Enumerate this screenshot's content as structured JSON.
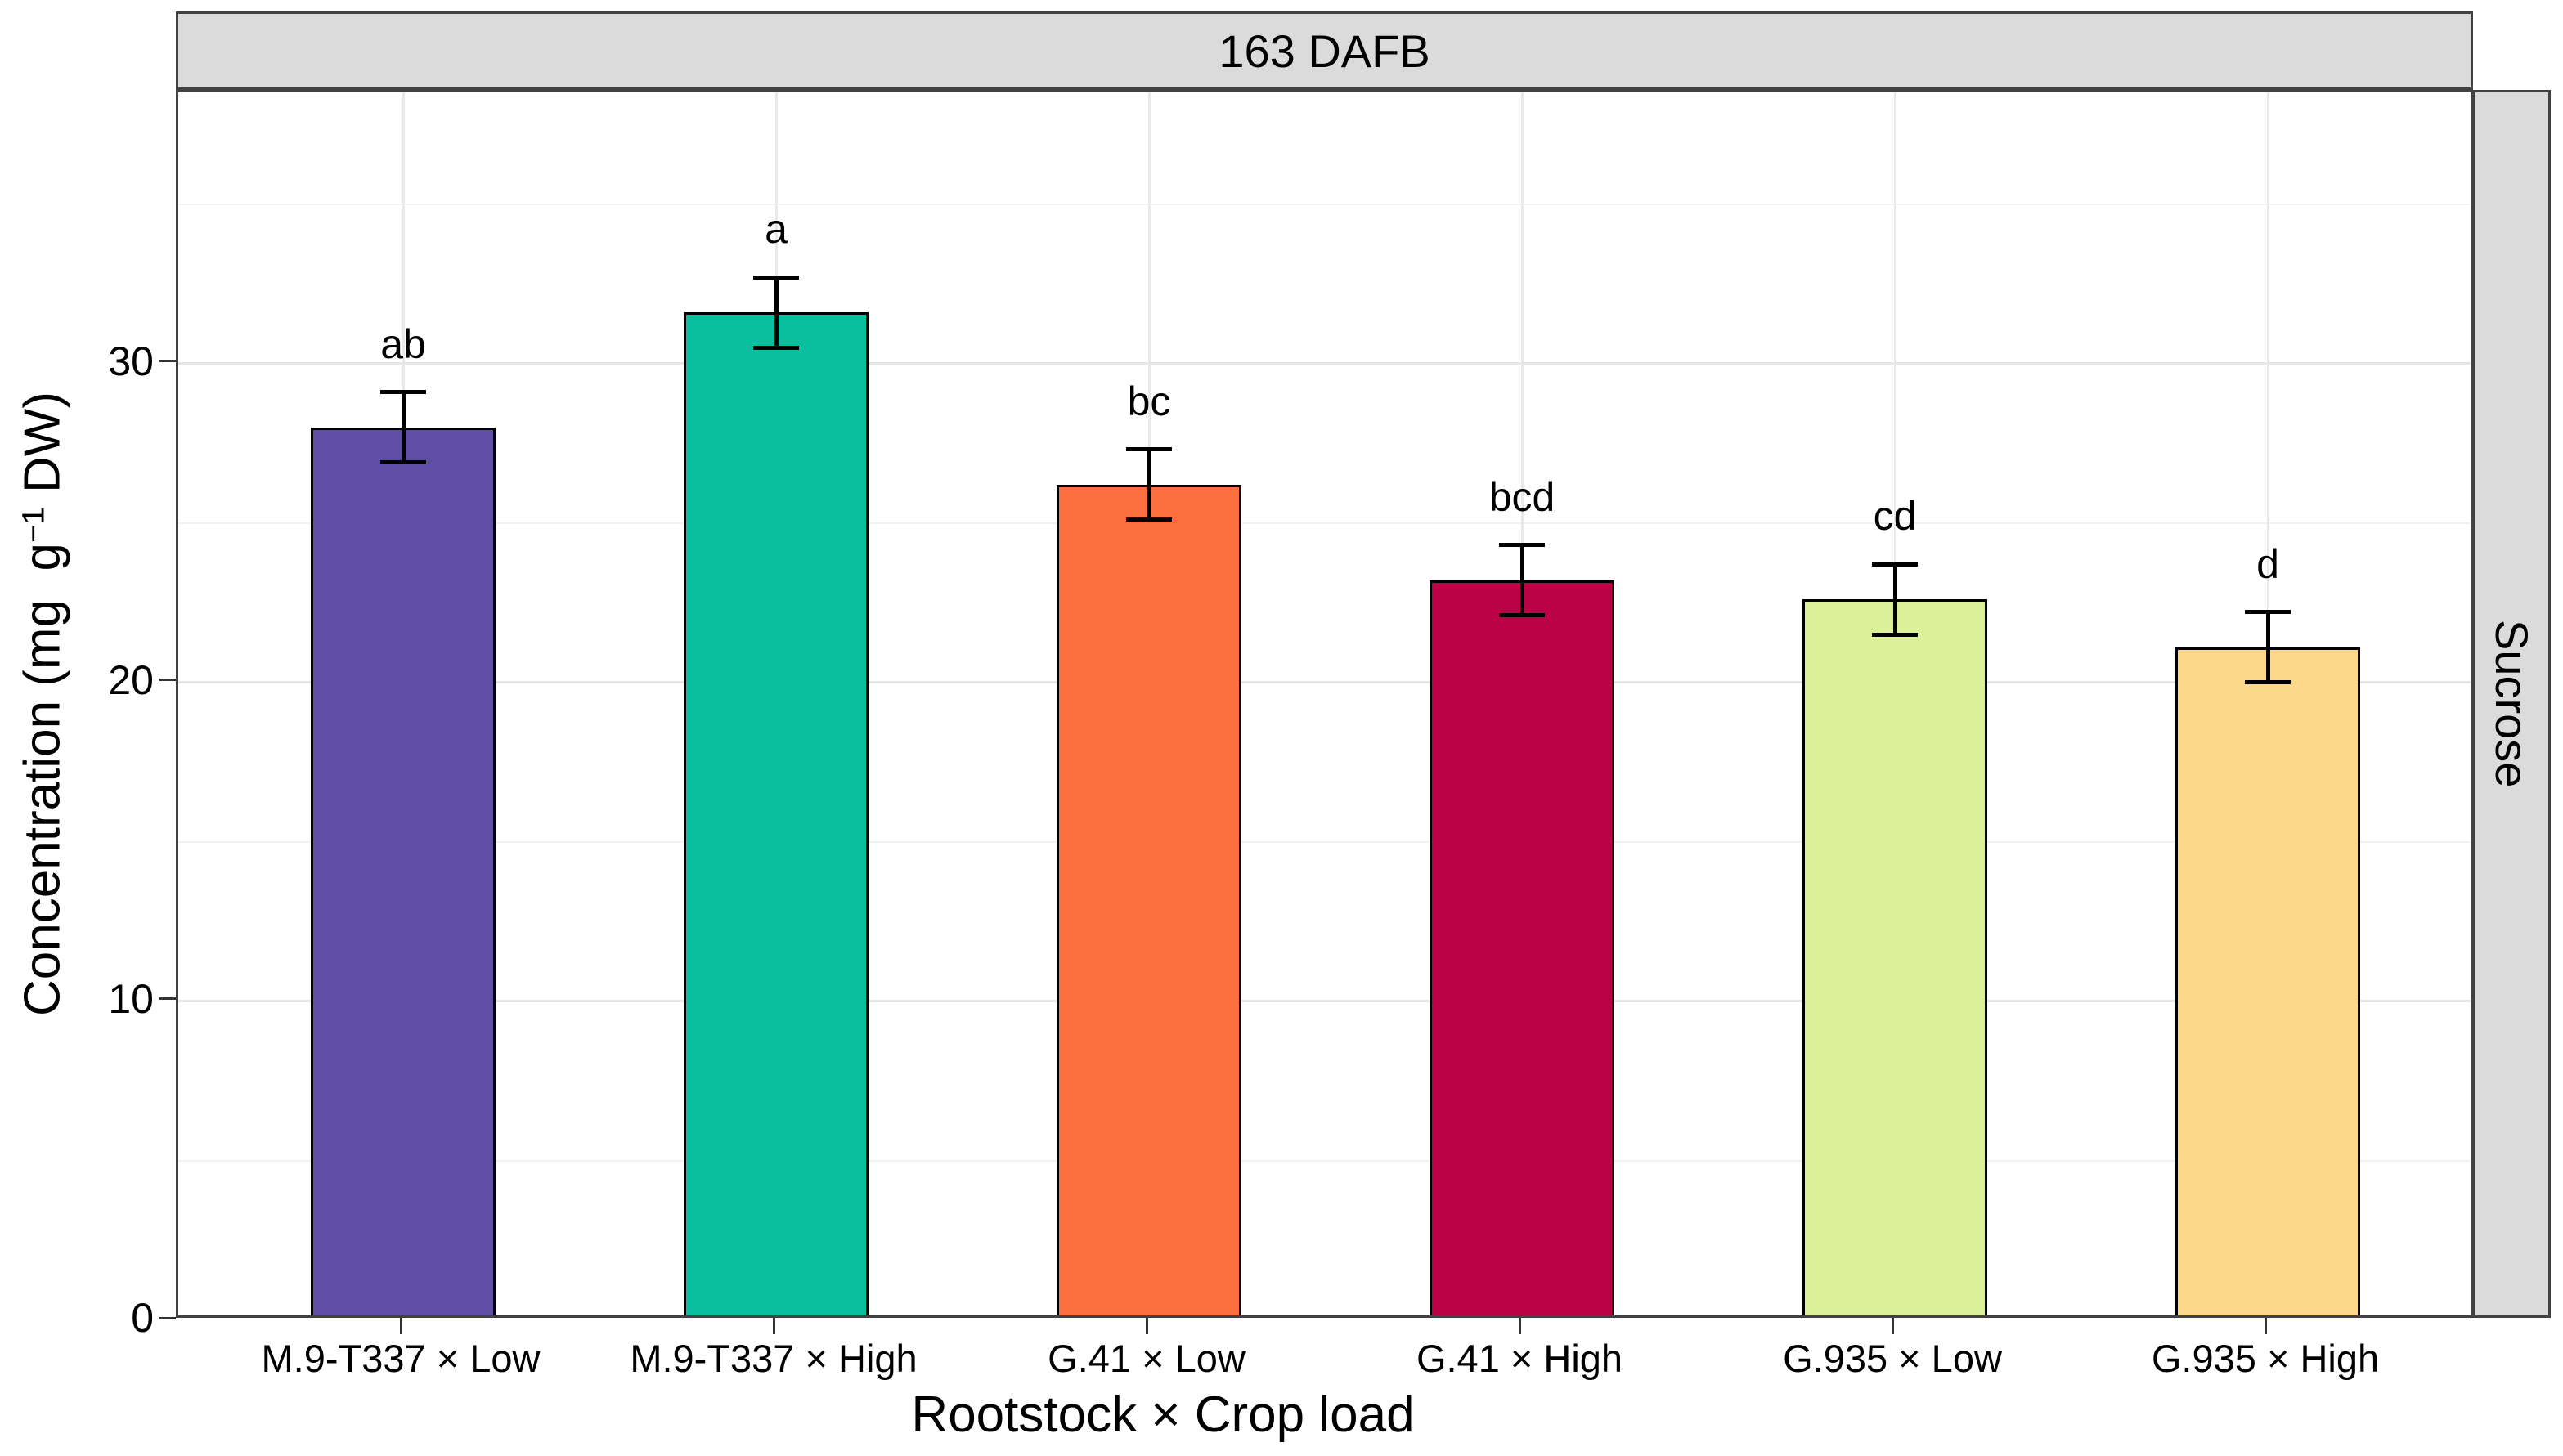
{
  "figure": {
    "facet_strip_top": "163 DAFB",
    "facet_strip_right": "Sucrose"
  },
  "chart_data": {
    "type": "bar",
    "title": "",
    "facet_row_label": "163 DAFB",
    "facet_col_label": "Sucrose",
    "xlabel": "Rootstock × Crop load",
    "ylabel": "Concentration (mg  g⁻¹ DW)",
    "ylabel_parts": {
      "pre": "Concentration (mg  g",
      "sup": "−1",
      "post": " DW)"
    },
    "ylim": [
      0,
      38.5
    ],
    "yticks": [
      0,
      10,
      20,
      30
    ],
    "minor_gridlines": [
      5,
      15,
      25,
      35
    ],
    "grid": true,
    "legend": "none",
    "categories": [
      "M.9-T337 × Low",
      "M.9-T337 × High",
      "G.41 × Low",
      "G.41 × High",
      "G.935 × Low",
      "G.935 × High"
    ],
    "values": [
      28.0,
      31.6,
      26.2,
      23.2,
      22.6,
      21.1
    ],
    "error_low": [
      26.9,
      30.5,
      25.1,
      22.1,
      21.5,
      20.0
    ],
    "error_high": [
      29.1,
      32.7,
      27.3,
      24.3,
      23.7,
      22.2
    ],
    "sig_letters": [
      "ab",
      "a",
      "bc",
      "bcd",
      "cd",
      "d"
    ],
    "bar_colors": [
      "#5F50A5",
      "#0ABF9E",
      "#FB6E3E",
      "#BC0247",
      "#DBF098",
      "#FCD98A"
    ],
    "bar_border_color": "#000000",
    "strip_bg_color": "#DBDBDB",
    "panel_border_color": "#424242"
  }
}
